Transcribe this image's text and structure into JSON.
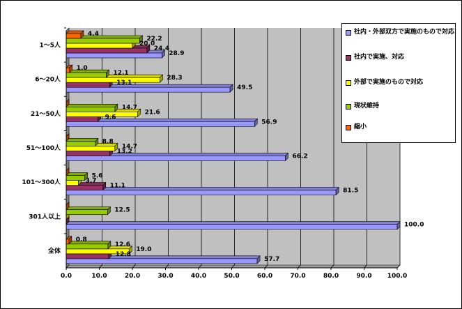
{
  "chart_data": {
    "type": "bar",
    "orientation": "horizontal",
    "title": "",
    "xlabel": "",
    "ylabel": "",
    "xlim": [
      0,
      100
    ],
    "x_ticks": [
      "0.0",
      "10.0",
      "20.0",
      "30.0",
      "40.0",
      "50.0",
      "60.0",
      "70.0",
      "80.0",
      "90.0",
      "100.0"
    ],
    "grid": true,
    "legend": "right",
    "categories": [
      "1～5人",
      "6～20人",
      "21～50人",
      "51～100人",
      "101～300人",
      "301人以上",
      "全体"
    ],
    "series": [
      {
        "name": "社内・外部双方で実施のもので対応",
        "color": "#9999ff",
        "values": [
          28.9,
          49.5,
          56.9,
          66.2,
          81.5,
          100.0,
          57.7
        ],
        "labels": [
          "28.9",
          "49.5",
          "56.9",
          "66.2",
          "81.5",
          "100.0",
          "57.7"
        ]
      },
      {
        "name": "社内で実施、対応",
        "color": "#993366",
        "values": [
          24.4,
          13.1,
          9.6,
          13.2,
          11.1,
          0,
          12.8
        ],
        "labels": [
          "24.4",
          "13.1",
          "9.6",
          "13.2",
          "11.1",
          "",
          "12.8"
        ]
      },
      {
        "name": "外部で実施のもので対応",
        "color": "#ffff00",
        "values": [
          20.0,
          28.3,
          21.6,
          14.7,
          3.7,
          0,
          19.0
        ],
        "labels": [
          "20.0",
          "28.3",
          "21.6",
          "14.7",
          "3.7",
          "",
          "19.0"
        ]
      },
      {
        "name": "現状維持",
        "color": "#99cc00",
        "values": [
          22.2,
          12.1,
          14.7,
          8.8,
          5.6,
          12.5,
          12.6
        ],
        "labels": [
          "22.2",
          "12.1",
          "14.7",
          "8.8",
          "5.6",
          "12.5",
          "12.6"
        ]
      },
      {
        "name": "縮小",
        "color": "#ff6600",
        "values": [
          4.4,
          1.0,
          0,
          0,
          0,
          0,
          0.8
        ],
        "labels": [
          "4.4",
          "1.0",
          "",
          "",
          "",
          "",
          "0.8"
        ]
      }
    ]
  }
}
